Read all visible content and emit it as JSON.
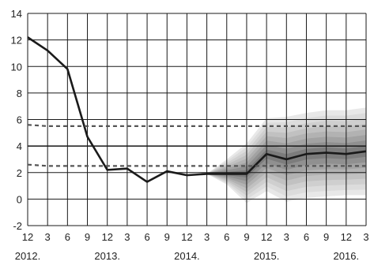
{
  "chart_data": {
    "type": "line",
    "title": "",
    "xlabel": "",
    "ylabel": "",
    "ylim": [
      -2,
      14
    ],
    "yticks": [
      "-2",
      "0",
      "2",
      "4",
      "6",
      "8",
      "10",
      "12",
      "14"
    ],
    "xlim": [
      0,
      17
    ],
    "xtick_labels": [
      "12",
      "3",
      "6",
      "9",
      "12",
      "3",
      "6",
      "9",
      "12",
      "3",
      "6",
      "9",
      "12",
      "3",
      "6",
      "9",
      "12",
      "3"
    ],
    "year_labels": [
      {
        "text": "2012.",
        "at": 0
      },
      {
        "text": "2013.",
        "at": 4
      },
      {
        "text": "2014.",
        "at": 8
      },
      {
        "text": "2015.",
        "at": 12
      },
      {
        "text": "2016.",
        "at": 16
      }
    ],
    "grid": true,
    "legend": "none",
    "series": [
      {
        "role": "actual",
        "style": "solid-thick",
        "color": "#1a1a1a",
        "x": [
          0,
          1,
          2,
          3,
          4,
          5,
          6,
          7,
          8,
          9
        ],
        "values": [
          12.2,
          11.2,
          9.8,
          4.7,
          2.2,
          2.3,
          1.3,
          2.1,
          1.8,
          1.9
        ]
      },
      {
        "role": "projection",
        "style": "solid-thick",
        "color": "#1a1a1a",
        "x": [
          9,
          10,
          11,
          12,
          13,
          14,
          15,
          16,
          17
        ],
        "values": [
          1.9,
          1.9,
          1.9,
          3.4,
          3.0,
          3.4,
          3.5,
          3.4,
          3.6
        ]
      },
      {
        "role": "target",
        "style": "solid-thin",
        "color": "#1a1a1a",
        "x": [
          0,
          17
        ],
        "values": [
          4.0,
          4.0
        ]
      },
      {
        "role": "upper-tolerance",
        "style": "dashed",
        "color": "#555555",
        "x": [
          0,
          1,
          17
        ],
        "values": [
          5.6,
          5.5,
          5.5
        ]
      },
      {
        "role": "lower-tolerance",
        "style": "dashed",
        "color": "#555555",
        "x": [
          0,
          1,
          17
        ],
        "values": [
          2.6,
          2.5,
          2.5
        ]
      }
    ],
    "fan": {
      "x": [
        9,
        10,
        11,
        12,
        13,
        14,
        15,
        16,
        17
      ],
      "upper_outer": [
        1.9,
        3.0,
        4.2,
        6.1,
        6.2,
        6.5,
        6.7,
        6.7,
        6.9
      ],
      "lower_outer": [
        1.9,
        1.1,
        -0.3,
        0.6,
        -0.2,
        0.1,
        0.2,
        0.3,
        0.3
      ],
      "bands": 8,
      "colors": [
        "#e8e8e8",
        "#dcdcdc",
        "#cfcfcf",
        "#c1c1c1",
        "#b2b2b2",
        "#a2a2a2",
        "#909090",
        "#7c7c7c"
      ]
    }
  }
}
